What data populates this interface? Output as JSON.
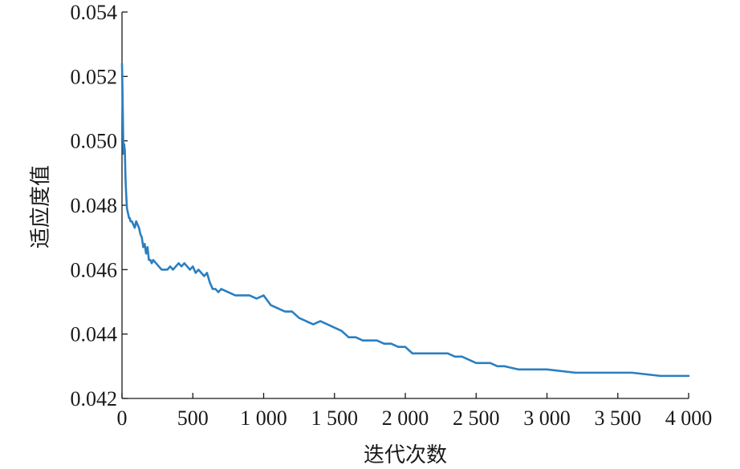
{
  "chart_data": {
    "type": "line",
    "xlabel": "迭代次数",
    "ylabel": "适应度值",
    "xlim": [
      0,
      4000
    ],
    "ylim": [
      0.042,
      0.054
    ],
    "x_ticks": [
      0,
      500,
      1000,
      1500,
      2000,
      2500,
      3000,
      3500,
      4000
    ],
    "x_tick_labels": [
      "0",
      "500",
      "1 000",
      "1 500",
      "2 000",
      "2 500",
      "3 000",
      "3 500",
      "4 000"
    ],
    "y_ticks": [
      0.042,
      0.044,
      0.046,
      0.048,
      0.05,
      0.052,
      0.054
    ],
    "y_tick_labels": [
      "0.042",
      "0.044",
      "0.046",
      "0.048",
      "0.050",
      "0.052",
      "0.054"
    ],
    "grid": false,
    "colors": {
      "line": "#2a7fc1",
      "axis": "#1a1a1a"
    },
    "series": [
      {
        "x": [
          0,
          3,
          6,
          10,
          15,
          20,
          25,
          30,
          35,
          40,
          45,
          50,
          55,
          60,
          70,
          80,
          90,
          100,
          110,
          120,
          130,
          140,
          150,
          160,
          170,
          180,
          190,
          200,
          210,
          220,
          240,
          260,
          280,
          300,
          320,
          340,
          360,
          380,
          400,
          420,
          440,
          460,
          480,
          500,
          520,
          540,
          560,
          580,
          600,
          620,
          640,
          660,
          680,
          700,
          750,
          800,
          850,
          900,
          950,
          1000,
          1050,
          1100,
          1150,
          1200,
          1250,
          1300,
          1350,
          1400,
          1450,
          1500,
          1550,
          1600,
          1650,
          1700,
          1750,
          1800,
          1850,
          1900,
          1950,
          2000,
          2050,
          2100,
          2150,
          2200,
          2250,
          2300,
          2350,
          2400,
          2450,
          2500,
          2550,
          2600,
          2650,
          2700,
          2800,
          2900,
          3000,
          3200,
          3400,
          3600,
          3800,
          4000
        ],
        "y": [
          0.0524,
          0.0517,
          0.0508,
          0.0496,
          0.0499,
          0.0497,
          0.0488,
          0.0483,
          0.0479,
          0.0478,
          0.0477,
          0.0476,
          0.0476,
          0.0475,
          0.0475,
          0.0474,
          0.0473,
          0.0475,
          0.0474,
          0.0473,
          0.0471,
          0.047,
          0.0467,
          0.0468,
          0.0465,
          0.0467,
          0.0463,
          0.0463,
          0.0462,
          0.0463,
          0.0462,
          0.0461,
          0.046,
          0.046,
          0.046,
          0.0461,
          0.046,
          0.0461,
          0.0462,
          0.0461,
          0.0462,
          0.0461,
          0.046,
          0.0461,
          0.0459,
          0.046,
          0.0459,
          0.0458,
          0.0459,
          0.0456,
          0.0454,
          0.0454,
          0.0453,
          0.0454,
          0.0453,
          0.0452,
          0.0452,
          0.0452,
          0.0451,
          0.0452,
          0.0449,
          0.0448,
          0.0447,
          0.0447,
          0.0445,
          0.0444,
          0.0443,
          0.0444,
          0.0443,
          0.0442,
          0.0441,
          0.0439,
          0.0439,
          0.0438,
          0.0438,
          0.0438,
          0.0437,
          0.0437,
          0.0436,
          0.0436,
          0.0434,
          0.0434,
          0.0434,
          0.0434,
          0.0434,
          0.0434,
          0.0433,
          0.0433,
          0.0432,
          0.0431,
          0.0431,
          0.0431,
          0.043,
          0.043,
          0.0429,
          0.0429,
          0.0429,
          0.0428,
          0.0428,
          0.0428,
          0.0427,
          0.0427
        ]
      }
    ]
  }
}
